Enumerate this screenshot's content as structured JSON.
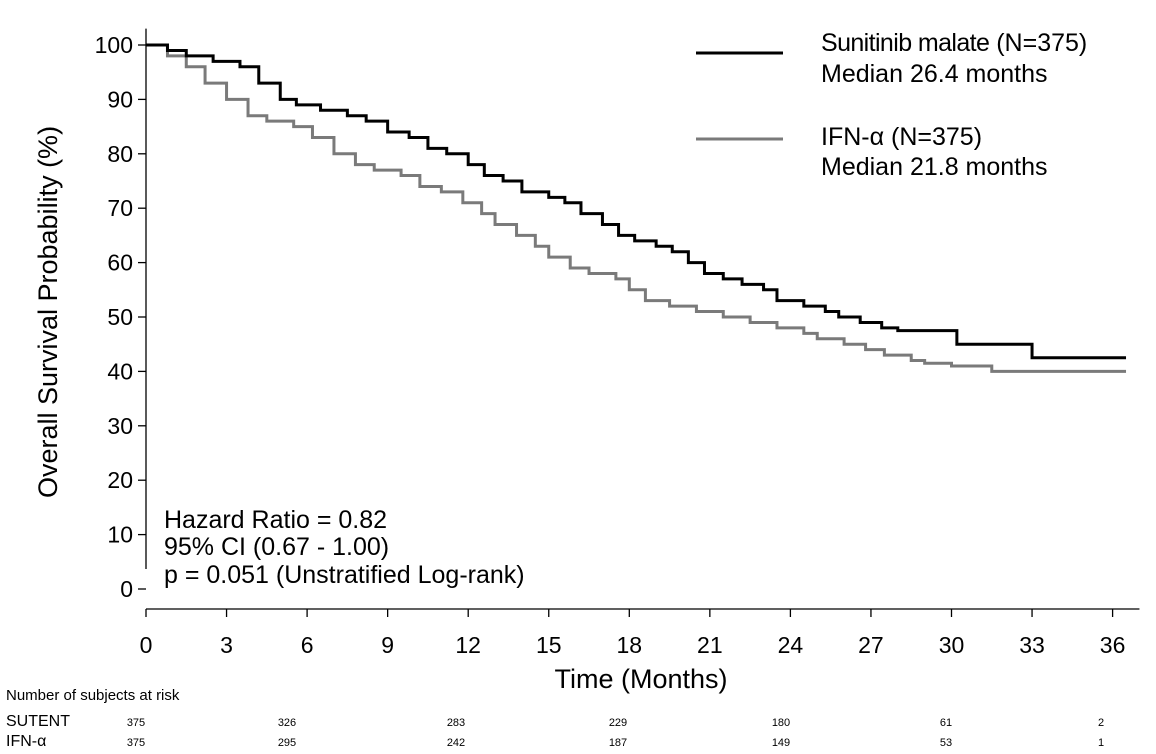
{
  "chart_data": {
    "type": "line",
    "step": true,
    "xlabel": "Time (Months)",
    "ylabel": "Overall Survival Probability (%)",
    "xlim": [
      0,
      37
    ],
    "ylim": [
      0,
      103
    ],
    "x_ticks": [
      0,
      3,
      6,
      9,
      12,
      15,
      18,
      21,
      24,
      27,
      30,
      33,
      36
    ],
    "y_ticks": [
      0,
      10,
      20,
      30,
      40,
      50,
      60,
      70,
      80,
      90,
      100
    ],
    "grid": false,
    "legend_position": "top-right",
    "series": [
      {
        "name": "Sunitinib malate (N=375)",
        "name_main": "Sunitinib malate",
        "name_n": "(N=375)",
        "median_label": "Median 26.4 months",
        "color": "#000000",
        "x": [
          0,
          0.8,
          1.5,
          2.5,
          3.5,
          4.2,
          5.0,
          5.6,
          6.5,
          7.5,
          8.2,
          9.0,
          9.8,
          10.5,
          11.2,
          12.0,
          12.6,
          13.3,
          14.0,
          15.0,
          15.6,
          16.2,
          17.0,
          17.6,
          18.2,
          19.0,
          19.6,
          20.2,
          20.8,
          21.5,
          22.2,
          23.0,
          23.5,
          24.5,
          25.3,
          25.8,
          26.6,
          27.4,
          28.0,
          29.0,
          30.0,
          30.2,
          31.0,
          32.0,
          33.0,
          36.5
        ],
        "y": [
          100,
          99,
          98,
          97,
          96,
          93,
          90,
          89,
          88,
          87,
          86,
          84,
          83,
          81,
          80,
          78,
          76,
          75,
          73,
          72,
          71,
          69,
          67,
          65,
          64,
          63,
          62,
          60,
          58,
          57,
          56,
          55,
          53,
          52,
          51,
          50,
          49,
          48,
          47.5,
          47.5,
          47.5,
          45,
          45,
          45,
          42.5,
          42.5
        ]
      },
      {
        "name": "IFN-α (N=375)",
        "name_main": "IFN-α",
        "name_n": "(N=375)",
        "median_label": "Median 21.8 months",
        "color": "#7a7a7a",
        "x": [
          0,
          0.8,
          1.5,
          2.2,
          3.0,
          3.8,
          4.5,
          5.5,
          6.2,
          7.0,
          7.8,
          8.5,
          9.5,
          10.2,
          11.0,
          11.8,
          12.5,
          13.0,
          13.8,
          14.5,
          15.0,
          15.8,
          16.5,
          17.5,
          18.0,
          18.6,
          19.5,
          20.5,
          21.5,
          22.5,
          23.5,
          24.5,
          25.0,
          26.0,
          26.8,
          27.5,
          28.5,
          29.0,
          30.0,
          31.5,
          36.5
        ],
        "y": [
          100,
          98,
          96,
          93,
          90,
          87,
          86,
          85,
          83,
          80,
          78,
          77,
          76,
          74,
          73,
          71,
          69,
          67,
          65,
          63,
          61,
          59,
          58,
          57,
          55,
          53,
          52,
          51,
          50,
          49,
          48,
          47,
          46,
          45,
          44,
          43,
          42,
          41.5,
          41,
          40,
          40
        ]
      }
    ],
    "annotations": [
      "Hazard Ratio = 0.82",
      "95% CI (0.67 - 1.00)",
      "p = 0.051 (Unstratified Log-rank)"
    ],
    "risk_table": {
      "title": "Number of subjects at risk",
      "times": [
        0,
        6,
        12,
        18,
        24,
        30,
        36
      ],
      "rows": [
        {
          "label": "SUTENT",
          "values": [
            "375",
            "326",
            "283",
            "229",
            "180",
            "61",
            "2"
          ]
        },
        {
          "label": "IFN-α",
          "values": [
            "375",
            "295",
            "242",
            "187",
            "149",
            "53",
            "1"
          ]
        }
      ]
    }
  }
}
